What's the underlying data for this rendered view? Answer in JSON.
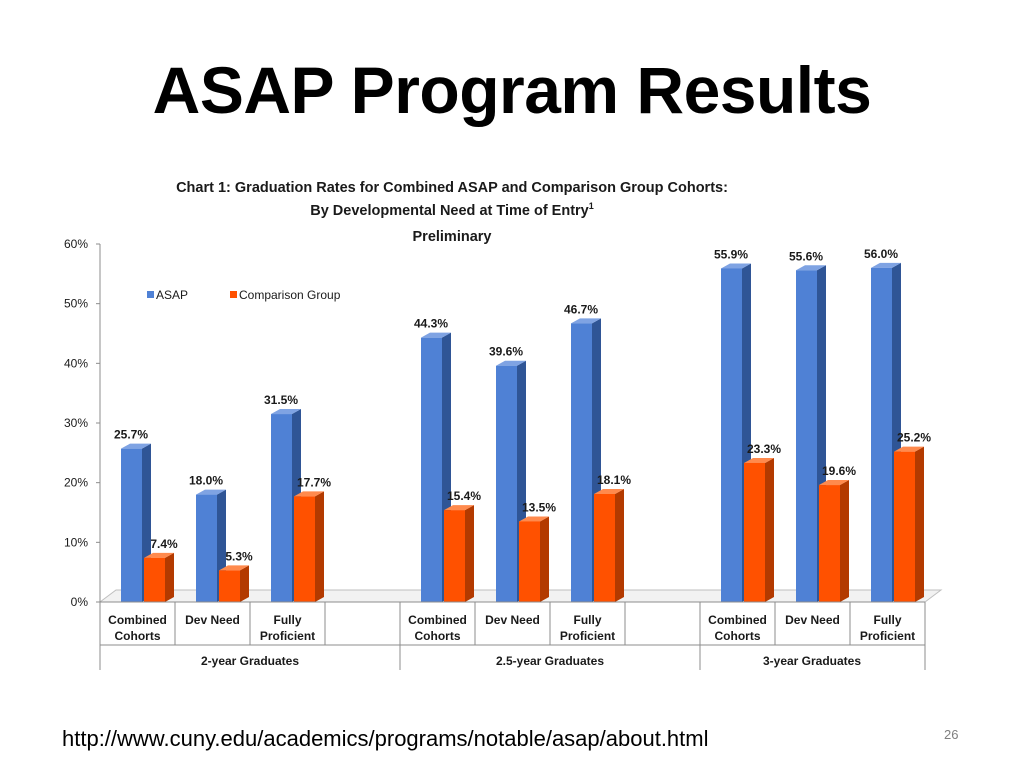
{
  "slide": {
    "title": "ASAP Program Results",
    "footer_url": "http://www.cuny.edu/academics/programs/notable/asap/about.html",
    "page_number": "26"
  },
  "colors": {
    "asap": "#4f81d5",
    "asap_side": "#2f5596",
    "asap_top": "#7fa3e3",
    "comparison": "#ff5100",
    "comparison_side": "#b33a00",
    "comparison_top": "#ff8a4d"
  },
  "chart_data": {
    "type": "bar",
    "title_lines": [
      "Chart 1: Graduation Rates for Combined ASAP and Comparison Group Cohorts:",
      "By Developmental Need at Time of Entry",
      "Preliminary"
    ],
    "title_superscript": "1",
    "ylim": [
      0,
      60
    ],
    "yticks": [
      "0%",
      "10%",
      "20%",
      "30%",
      "40%",
      "50%",
      "60%"
    ],
    "legend": [
      "ASAP",
      "Comparison Group"
    ],
    "legend_position": "top-left",
    "groups": [
      {
        "label": "2-year Graduates",
        "categories": [
          [
            "Combined",
            "Cohorts"
          ],
          [
            "Dev Need"
          ],
          [
            "Fully",
            "Proficient"
          ]
        ],
        "asap": [
          25.7,
          18.0,
          31.5
        ],
        "comparison": [
          7.4,
          5.3,
          17.7
        ],
        "asap_labels": [
          "25.7%",
          "18.0%",
          "31.5%"
        ],
        "comparison_labels": [
          "7.4%",
          "5.3%",
          "17.7%"
        ]
      },
      {
        "label": "2.5-year Graduates",
        "categories": [
          [
            "Combined",
            "Cohorts"
          ],
          [
            "Dev Need"
          ],
          [
            "Fully",
            "Proficient"
          ]
        ],
        "asap": [
          44.3,
          39.6,
          46.7
        ],
        "comparison": [
          15.4,
          13.5,
          18.1
        ],
        "asap_labels": [
          "44.3%",
          "39.6%",
          "46.7%"
        ],
        "comparison_labels": [
          "15.4%",
          "13.5%",
          "18.1%"
        ]
      },
      {
        "label": "3-year Graduates",
        "categories": [
          [
            "Combined",
            "Cohorts"
          ],
          [
            "Dev Need"
          ],
          [
            "Fully",
            "Proficient"
          ]
        ],
        "asap": [
          55.9,
          55.6,
          56.0
        ],
        "comparison": [
          23.3,
          19.6,
          25.2
        ],
        "asap_labels": [
          "55.9%",
          "55.6%",
          "56.0%"
        ],
        "comparison_labels": [
          "23.3%",
          "19.6%",
          "25.2%"
        ]
      }
    ]
  }
}
